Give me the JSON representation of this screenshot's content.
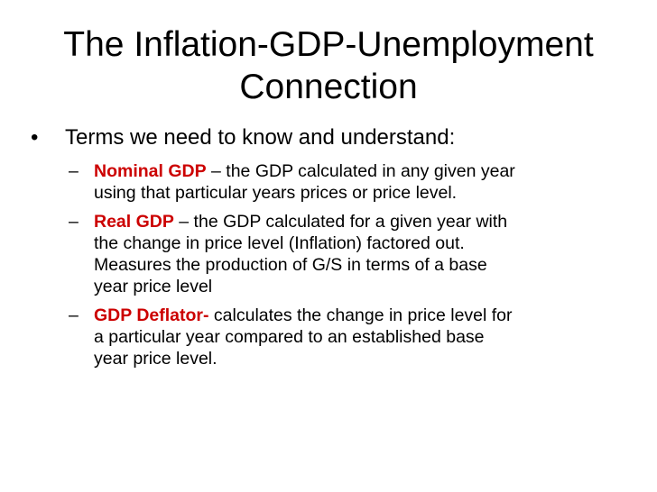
{
  "slide": {
    "title_line1": "The Inflation-GDP-Unemployment",
    "title_line2": "Connection",
    "bullet_marker": "•",
    "intro": "Terms we need to know and understand:",
    "dash_marker": "–",
    "items": [
      {
        "term": "Nominal GDP",
        "lines": [
          " – the GDP calculated in any given year",
          "using that particular years prices or price level."
        ]
      },
      {
        "term": "Real GDP",
        "lines": [
          " – the GDP calculated for a given year with",
          "the change in price level (Inflation) factored out.",
          "Measures the production of G/S in terms of a base",
          "year price level"
        ]
      },
      {
        "term": "GDP Deflator-",
        "lines": [
          " calculates the change in price level for",
          "a particular year compared to an established base",
          "year price level."
        ]
      }
    ]
  },
  "colors": {
    "term_color": "#cc0000",
    "text_color": "#000000",
    "background": "#ffffff"
  }
}
